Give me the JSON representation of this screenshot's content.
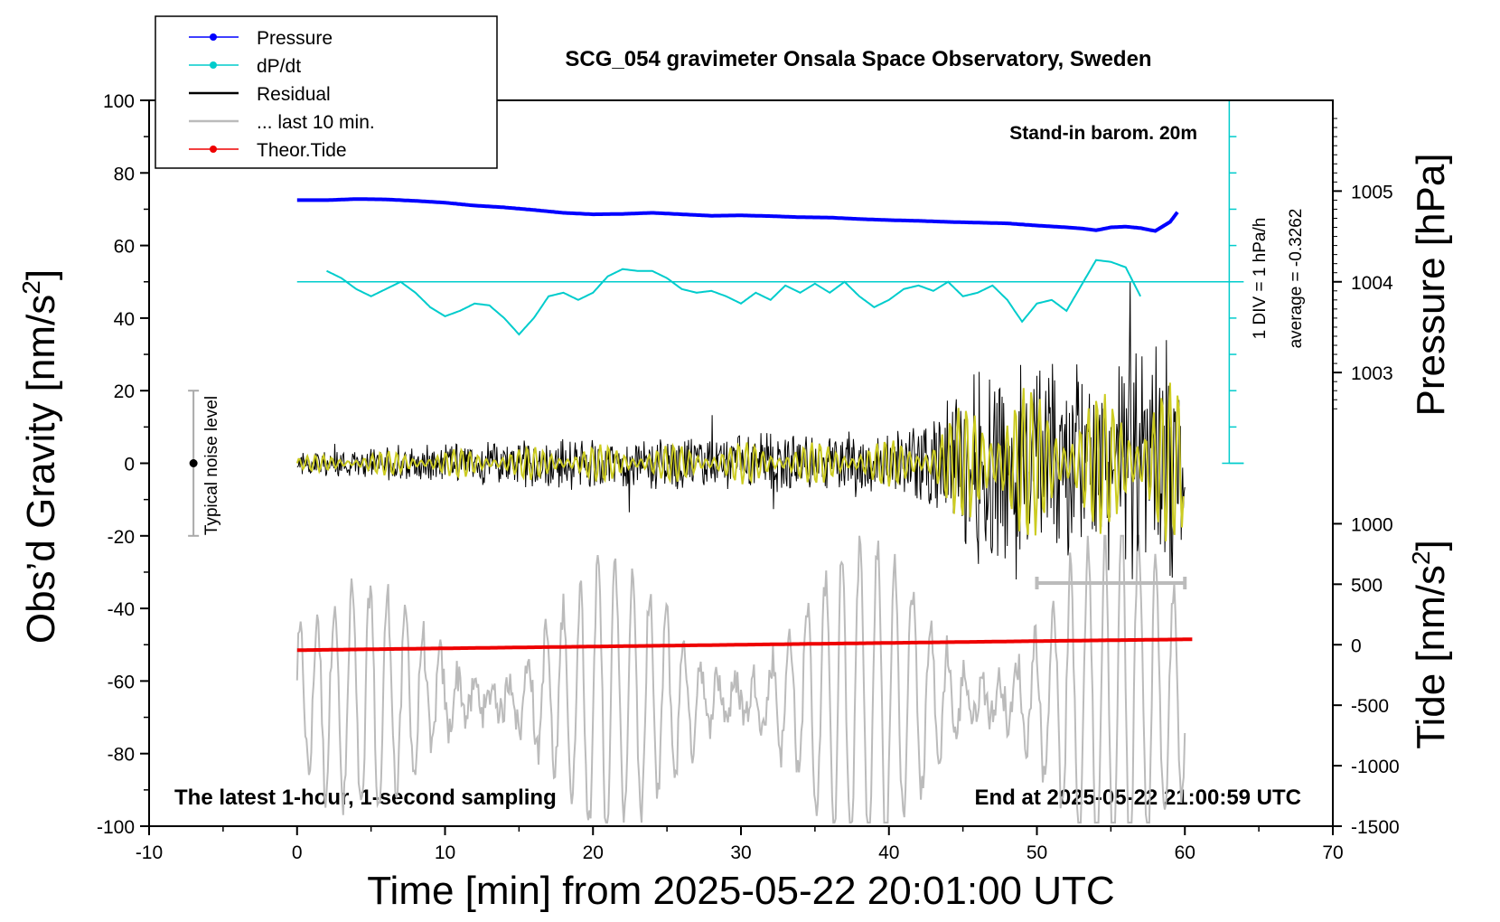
{
  "chart_data": {
    "type": "line",
    "title": "SCG_054 gravimeter Onsala Space Observatory, Sweden",
    "xlabel": "Time [min] from 2025-05-22 20:01:00 UTC",
    "ylabel": "Obs'd Gravity [nm/s²]",
    "ylabel_main": "Obs’d Gravity [nm/s",
    "ylabel_close": "]",
    "right_label_pressure": "Pressure [hPa]",
    "right_label_tide_main": "Tide [nm/s",
    "right_label_tide_close": "]",
    "superscript": "2",
    "xlim": [
      -10,
      70
    ],
    "ylim": [
      -100,
      100
    ],
    "x_ticks": [
      "-10",
      "0",
      "10",
      "20",
      "30",
      "40",
      "50",
      "60",
      "70"
    ],
    "y_ticks": [
      "100",
      "80",
      "60",
      "40",
      "20",
      "0",
      "-20",
      "-40",
      "-60",
      "-80",
      "-100"
    ],
    "pressure_axis": {
      "ticks": [
        "1005",
        "1004",
        "1003"
      ],
      "values": [
        1005,
        1004,
        1003
      ]
    },
    "tide_axis": {
      "ticks": [
        "1000",
        "500",
        "0",
        "-500",
        "-1000",
        "-1500"
      ],
      "values": [
        1000,
        500,
        0,
        -500,
        -1000,
        -1500
      ],
      "range": [
        -1500,
        1500
      ]
    },
    "legend": {
      "position": "top-left",
      "entries": [
        {
          "label": "Pressure",
          "color": "#0000ff",
          "marker": true
        },
        {
          "label": "dP/dt",
          "color": "#00cccc",
          "marker": true
        },
        {
          "label": "Residual",
          "color": "#000000",
          "marker": false
        },
        {
          "label": "... last 10 min.",
          "color": "#bbbbbb",
          "marker": false
        },
        {
          "label": "Theor.Tide",
          "color": "#ee0000",
          "marker": true
        }
      ]
    },
    "annotations": {
      "barometer": "Stand-in barom. 20m",
      "div_label": "1 DIV = 1 hPa/h",
      "average_label": "average = -0.3262",
      "noise_label": "Typical noise level",
      "footer_left": "The latest 1-hour, 1-second sampling",
      "footer_right": "End at 2025-05-22 21:00:59 UTC"
    },
    "noise_bar": {
      "x": -7,
      "y_range": [
        -20,
        20
      ]
    },
    "window_bar": {
      "x_range": [
        50,
        60
      ],
      "y": -33
    },
    "dpdt_baseline_y": 50,
    "series": [
      {
        "name": "Pressure",
        "color": "#0000ff",
        "x": [
          0,
          2,
          4,
          6,
          8,
          10,
          12,
          14,
          16,
          18,
          20,
          22,
          24,
          26,
          28,
          30,
          32,
          34,
          36,
          38,
          40,
          42,
          44,
          46,
          48,
          50,
          52,
          53,
          54,
          55,
          56,
          57,
          58,
          59,
          59.5
        ],
        "y": [
          72.5,
          72.5,
          72.8,
          72.7,
          72.3,
          71.8,
          71,
          70.5,
          69.8,
          69,
          68.6,
          68.7,
          69,
          68.6,
          68.2,
          68.3,
          68.1,
          67.8,
          67.7,
          67.3,
          67,
          66.8,
          66.5,
          66.3,
          66.1,
          65.5,
          65,
          64.7,
          64.2,
          65,
          65.2,
          64.8,
          64,
          66.5,
          69.2
        ]
      },
      {
        "name": "dP/dt",
        "color": "#00cccc",
        "x": [
          2,
          3,
          4,
          5,
          6,
          7,
          8,
          9,
          10,
          11,
          12,
          13,
          14,
          15,
          16,
          17,
          18,
          19,
          20,
          21,
          22,
          23,
          24,
          25,
          26,
          27,
          28,
          29,
          30,
          31,
          32,
          33,
          34,
          35,
          36,
          37,
          38,
          39,
          40,
          41,
          42,
          43,
          44,
          45,
          46,
          47,
          48,
          49,
          50,
          51,
          52,
          53,
          54,
          55,
          56,
          57
        ],
        "y": [
          53,
          51,
          48,
          46,
          48,
          50,
          47,
          43,
          40.5,
          42,
          44,
          43.5,
          40,
          35.5,
          40,
          46,
          47,
          45,
          47,
          51.5,
          53.5,
          53,
          53,
          51,
          48,
          47,
          47.5,
          46,
          44,
          47,
          45,
          49,
          47,
          49.5,
          47,
          50,
          46,
          43,
          45,
          48,
          49,
          47.5,
          50,
          46,
          47,
          49,
          45,
          39,
          44,
          45,
          42,
          49,
          56,
          55.5,
          54,
          46
        ]
      },
      {
        "name": "Residual",
        "color": "#000000",
        "note": "1-second sampled residual, noise amplitude grows from ~±5 to ~±40 nm/s² after minute 45",
        "x": [
          0,
          5,
          10,
          15,
          20,
          25,
          30,
          35,
          40,
          42,
          45,
          47,
          50,
          55,
          58,
          60
        ],
        "y": [
          0,
          0,
          0,
          0,
          0,
          0,
          0,
          0,
          0,
          0,
          0,
          0,
          0,
          0,
          0,
          0
        ],
        "amplitude": [
          3,
          5,
          6,
          7,
          8,
          8,
          9,
          9,
          10,
          12,
          25,
          40,
          32,
          30,
          40,
          30
        ]
      },
      {
        "name": "... last 10 min.",
        "color": "#bbbbbb",
        "note": "last 10 minutes of residual, stretched over the full time axis with magnified amplitude",
        "x": [
          0,
          60
        ],
        "y": [
          -65,
          -65
        ],
        "amplitude": [
          30,
          50
        ]
      },
      {
        "name": "Theor.Tide",
        "color": "#ee0000",
        "x": [
          0,
          10,
          20,
          30,
          40,
          50,
          60.5
        ],
        "y": [
          -51.5,
          -51,
          -50.5,
          -50,
          -49.5,
          -49,
          -48.5
        ]
      }
    ]
  }
}
